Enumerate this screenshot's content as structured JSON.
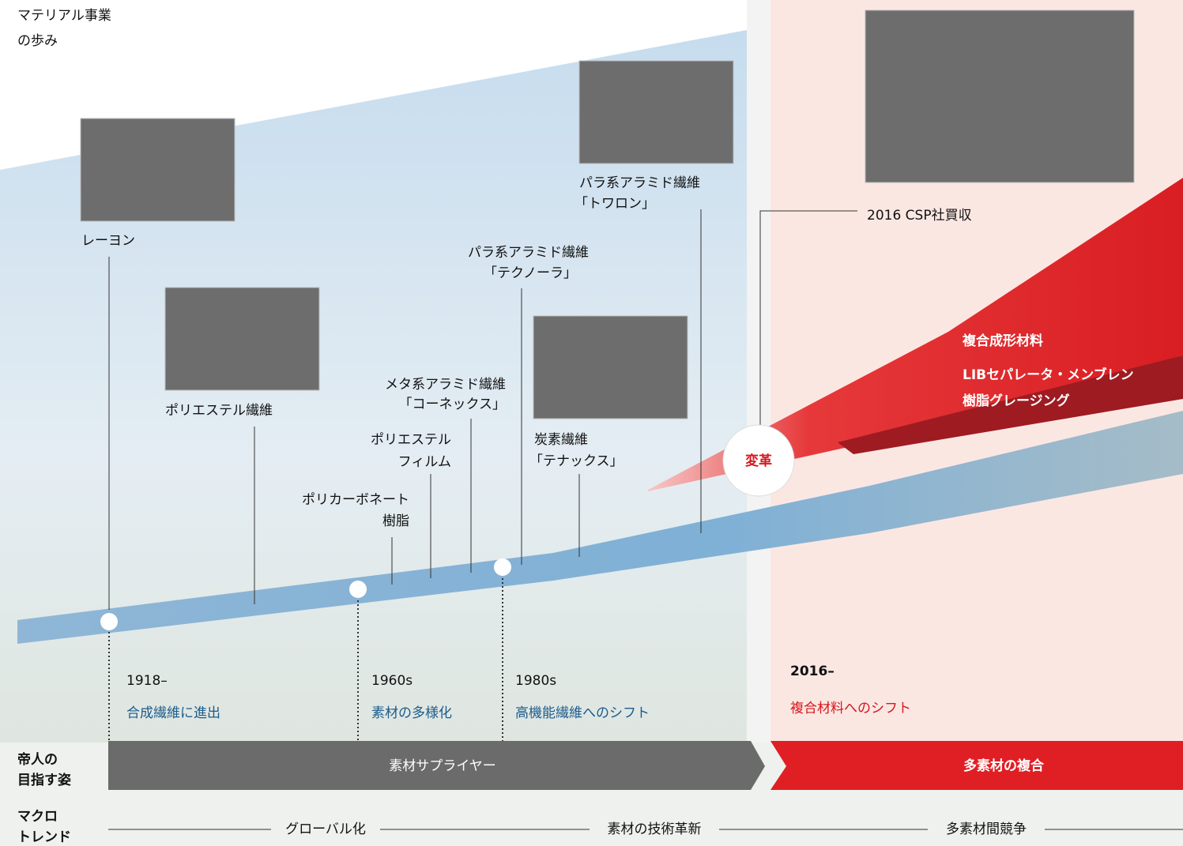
{
  "header": {
    "title_lines": [
      "マテリアル事業",
      "の歩み"
    ]
  },
  "milestones": [
    {
      "lines": [
        "レーヨン"
      ]
    },
    {
      "lines": [
        "ポリエステル繊維"
      ]
    },
    {
      "lines": [
        "ポリカーボネート",
        "樹脂"
      ]
    },
    {
      "lines": [
        "ポリエステル",
        "フィルム"
      ]
    },
    {
      "lines": [
        "メタ系アラミド繊維",
        "「コーネックス」"
      ]
    },
    {
      "lines": [
        "パラ系アラミド繊維",
        "「テクノーラ」"
      ]
    },
    {
      "lines": [
        "炭素繊維",
        "「テナックス」"
      ]
    },
    {
      "lines": [
        "パラ系アラミド繊維",
        "「トワロン」"
      ]
    }
  ],
  "eras": [
    {
      "year": "1918–",
      "theme": "合成繊維に進出"
    },
    {
      "year": "1960s",
      "theme": "素材の多様化"
    },
    {
      "year": "1980s",
      "theme": "高機能繊維へのシフト"
    },
    {
      "year": "2016–",
      "theme": "複合材料へのシフト"
    }
  ],
  "acquisition": "2016 CSP社買収",
  "transformation": "変革",
  "new_businesses": [
    "複合成形材料",
    "LIBセパレータ・メンブレン",
    "樹脂グレージング"
  ],
  "vision": {
    "label_lines": [
      "帝人の",
      "目指す姿"
    ],
    "stages": [
      "素材サプライヤー",
      "多素材の複合"
    ]
  },
  "macro_trend": {
    "label_lines": [
      "マクロ",
      "トレンド"
    ],
    "trends": [
      "グローバル化",
      "素材の技術革新",
      "多素材間競争"
    ]
  }
}
